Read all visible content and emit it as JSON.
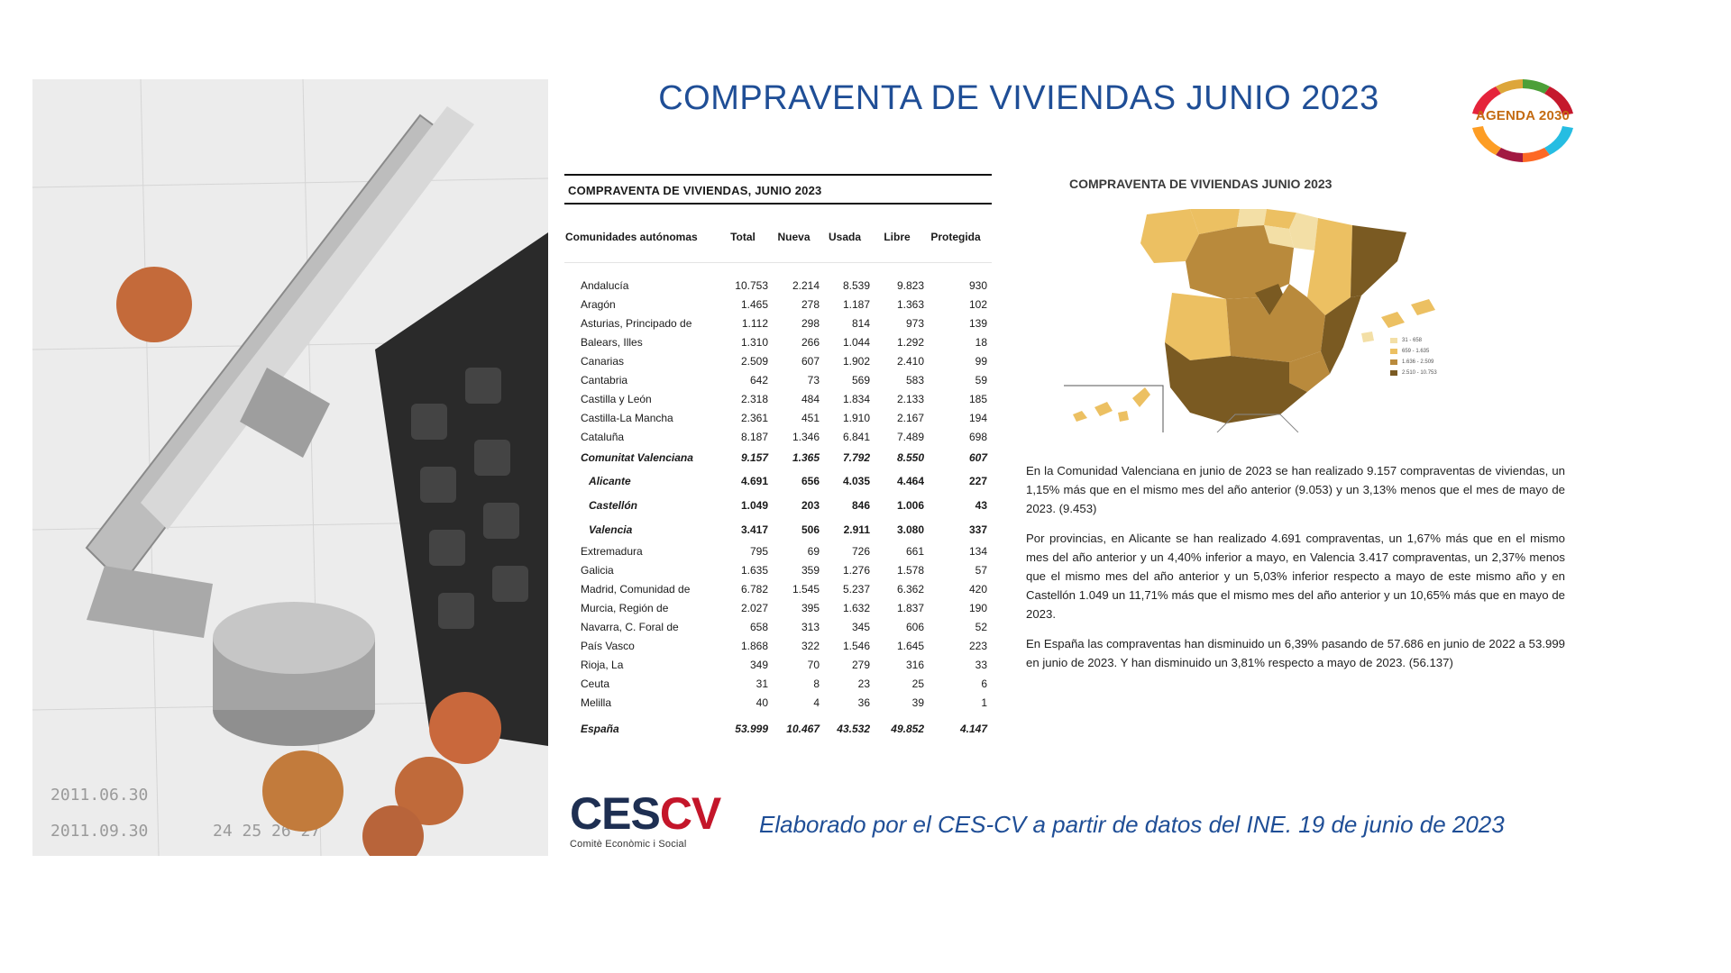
{
  "title": "COMPRAVENTA DE VIVIENDAS JUNIO 2023",
  "agenda_logo": {
    "text": "AGENDA 2030",
    "icon": "sdg-wheel-icon"
  },
  "photo": {
    "icon": "caliper-calculator-coins-photo"
  },
  "table": {
    "title": "COMPRAVENTA DE VIVIENDAS, JUNIO 2023",
    "headers": [
      "Comunidades autónomas",
      "Total",
      "Nueva",
      "Usada",
      "Libre",
      "Protegida"
    ],
    "rows": [
      [
        "Andalucía",
        "10.753",
        "2.214",
        "8.539",
        "9.823",
        "930"
      ],
      [
        "Aragón",
        "1.465",
        "278",
        "1.187",
        "1.363",
        "102"
      ],
      [
        "Asturias, Principado de",
        "1.112",
        "298",
        "814",
        "973",
        "139"
      ],
      [
        "Balears, Illes",
        "1.310",
        "266",
        "1.044",
        "1.292",
        "18"
      ],
      [
        "Canarias",
        "2.509",
        "607",
        "1.902",
        "2.410",
        "99"
      ],
      [
        "Cantabria",
        "642",
        "73",
        "569",
        "583",
        "59"
      ],
      [
        "Castilla y León",
        "2.318",
        "484",
        "1.834",
        "2.133",
        "185"
      ],
      [
        "Castilla-La Mancha",
        "2.361",
        "451",
        "1.910",
        "2.167",
        "194"
      ],
      [
        "Cataluña",
        "8.187",
        "1.346",
        "6.841",
        "7.489",
        "698"
      ]
    ],
    "cv_row": [
      "Comunitat Valenciana",
      "9.157",
      "1.365",
      "7.792",
      "8.550",
      "607"
    ],
    "province_rows": [
      [
        "Alicante",
        "4.691",
        "656",
        "4.035",
        "4.464",
        "227"
      ],
      [
        "Castellón",
        "1.049",
        "203",
        "846",
        "1.006",
        "43"
      ],
      [
        "Valencia",
        "3.417",
        "506",
        "2.911",
        "3.080",
        "337"
      ]
    ],
    "rows_after": [
      [
        "Extremadura",
        "795",
        "69",
        "726",
        "661",
        "134"
      ],
      [
        "Galicia",
        "1.635",
        "359",
        "1.276",
        "1.578",
        "57"
      ],
      [
        "Madrid, Comunidad de",
        "6.782",
        "1.545",
        "5.237",
        "6.362",
        "420"
      ],
      [
        "Murcia, Región de",
        "2.027",
        "395",
        "1.632",
        "1.837",
        "190"
      ],
      [
        "Navarra, C. Foral de",
        "658",
        "313",
        "345",
        "606",
        "52"
      ],
      [
        "País Vasco",
        "1.868",
        "322",
        "1.546",
        "1.645",
        "223"
      ],
      [
        "Rioja, La",
        "349",
        "70",
        "279",
        "316",
        "33"
      ],
      [
        "Ceuta",
        "31",
        "8",
        "23",
        "25",
        "6"
      ],
      [
        "Melilla",
        "40",
        "4",
        "36",
        "39",
        "1"
      ]
    ],
    "total_row": [
      "España",
      "53.999",
      "10.467",
      "43.532",
      "49.852",
      "4.147"
    ]
  },
  "map": {
    "title": "COMPRAVENTA DE VIVIENDAS JUNIO 2023",
    "legend": [
      {
        "label": "31 - 658",
        "color": "#f3dfa6"
      },
      {
        "label": "659 - 1.635",
        "color": "#ecc062"
      },
      {
        "label": "1.636 - 2.509",
        "color": "#b98a3c"
      },
      {
        "label": "2.510 - 10.753",
        "color": "#7a5a22"
      }
    ]
  },
  "paragraphs": [
    "En la Comunidad Valenciana en junio de 2023 se han realizado 9.157 compraventas de viviendas, un 1,15% más que en el mismo mes del año anterior (9.053) y un 3,13% menos que el mes de mayo de 2023. (9.453)",
    "Por provincias, en Alicante se han realizado 4.691 compraventas, un 1,67% más que en el mismo mes del año anterior y un 4,40% inferior a mayo, en Valencia 3.417 compraventas, un 2,37% menos que el mismo mes del año anterior y un 5,03% inferior respecto a mayo de este mismo año y en Castellón 1.049 un 11,71% más que el mismo mes del año anterior y un 10,65% más que en mayo de 2023.",
    "En España las compraventas han disminuido un 6,39% pasando de 57.686 en junio de 2022 a 53.999 en junio de 2023. Y han disminuido un 3,81% respecto a mayo de 2023. (56.137)"
  ],
  "ces_logo": {
    "ces": "CES",
    "cv": "CV",
    "subtitle": "Comitè Econòmic i Social"
  },
  "credit": "Elaborado por el CES-CV a partir de datos del INE. 19 de junio de 2023"
}
